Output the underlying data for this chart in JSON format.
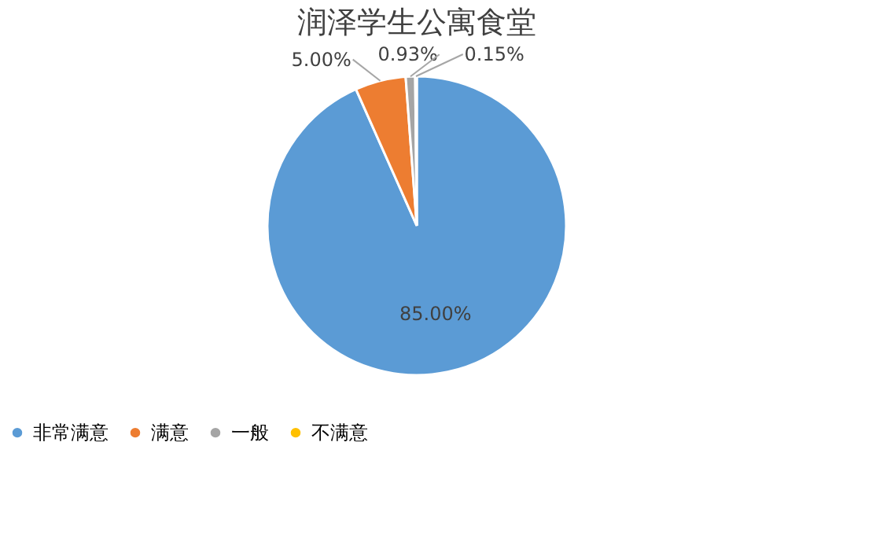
{
  "chart_data": {
    "type": "pie",
    "title": "润泽学生公寓食堂",
    "categories": [
      "非常满意",
      "满意",
      "一般",
      "不满意"
    ],
    "values": [
      85.0,
      5.0,
      0.93,
      0.15
    ],
    "value_labels": [
      "85.00%",
      "5.00%",
      "0.93%",
      "0.15%"
    ],
    "colors": [
      "#5b9bd5",
      "#ed7d31",
      "#a5a5a5",
      "#ffc000"
    ],
    "legend": "bottom"
  }
}
